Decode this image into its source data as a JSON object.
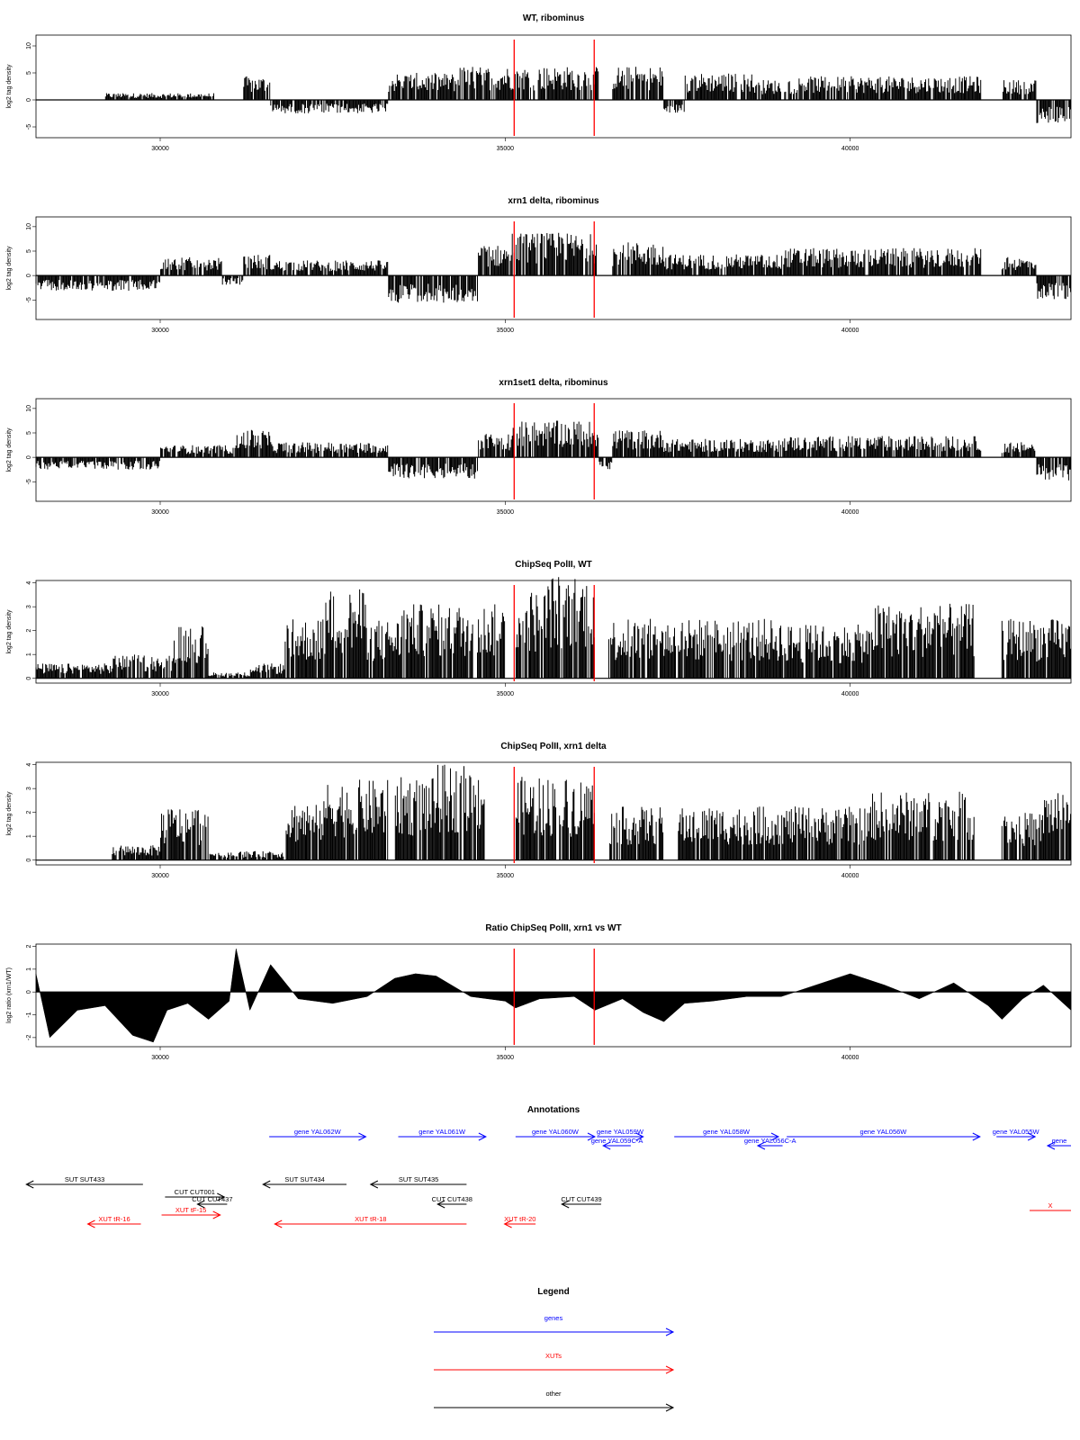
{
  "colors": {
    "gene": "#0000ff",
    "xut": "#ff0000",
    "other": "#000000",
    "marker": "#ff0000",
    "bars": "#000000"
  },
  "x_axis": {
    "min": 28200,
    "max": 43200,
    "ticks": [
      "30000",
      "35000",
      "40000"
    ]
  },
  "markers": [
    35130,
    36290
  ],
  "chart_data": [
    {
      "type": "bar",
      "title": "WT, ribominus",
      "ylabel": "log2 tag density",
      "ylim": [
        -7,
        12
      ],
      "yticks": [
        "10",
        "5",
        "0",
        "-5"
      ],
      "x_range": [
        28200,
        43200
      ],
      "signal_segments": [
        {
          "x0": 28200,
          "x1": 29200,
          "value": 0
        },
        {
          "x0": 29200,
          "x1": 30800,
          "value": 1.0
        },
        {
          "x0": 30800,
          "x1": 31200,
          "value": 0
        },
        {
          "x0": 31200,
          "x1": 31600,
          "value": 3.5
        },
        {
          "x0": 31600,
          "x1": 33300,
          "value": -2.0
        },
        {
          "x0": 33300,
          "x1": 34300,
          "value": 4.0
        },
        {
          "x0": 34300,
          "x1": 35100,
          "value": 5.0
        },
        {
          "x0": 35100,
          "x1": 36350,
          "value": 5.0
        },
        {
          "x0": 36350,
          "x1": 36550,
          "value": 0
        },
        {
          "x0": 36550,
          "x1": 37300,
          "value": 5.0
        },
        {
          "x0": 37300,
          "x1": 37600,
          "value": -2.0
        },
        {
          "x0": 37600,
          "x1": 38600,
          "value": 4.0
        },
        {
          "x0": 38600,
          "x1": 39200,
          "value": 3.0
        },
        {
          "x0": 39200,
          "x1": 41900,
          "value": 3.5
        },
        {
          "x0": 41900,
          "x1": 42200,
          "value": 0
        },
        {
          "x0": 42200,
          "x1": 42700,
          "value": 3.0
        },
        {
          "x0": 42700,
          "x1": 43200,
          "value": -3.5
        }
      ]
    },
    {
      "type": "bar",
      "title": "xrn1 delta, ribominus",
      "ylabel": "log2 tag density",
      "ylim": [
        -9,
        12
      ],
      "yticks": [
        "10",
        "5",
        "0",
        "-5"
      ],
      "x_range": [
        28200,
        43200
      ],
      "signal_segments": [
        {
          "x0": 28200,
          "x1": 30000,
          "value": -2.5
        },
        {
          "x0": 30000,
          "x1": 30900,
          "value": 3.0
        },
        {
          "x0": 30900,
          "x1": 31200,
          "value": -1.5
        },
        {
          "x0": 31200,
          "x1": 31600,
          "value": 3.5
        },
        {
          "x0": 31600,
          "x1": 33300,
          "value": 2.5
        },
        {
          "x0": 33300,
          "x1": 34600,
          "value": -4.5
        },
        {
          "x0": 34600,
          "x1": 35100,
          "value": 5.0
        },
        {
          "x0": 35100,
          "x1": 36350,
          "value": 7.0
        },
        {
          "x0": 36350,
          "x1": 36550,
          "value": 0
        },
        {
          "x0": 36550,
          "x1": 37300,
          "value": 5.5
        },
        {
          "x0": 37300,
          "x1": 39000,
          "value": 3.5
        },
        {
          "x0": 39000,
          "x1": 41900,
          "value": 4.5
        },
        {
          "x0": 41900,
          "x1": 42200,
          "value": 0
        },
        {
          "x0": 42200,
          "x1": 42700,
          "value": 3.0
        },
        {
          "x0": 42700,
          "x1": 43200,
          "value": -4.0
        }
      ]
    },
    {
      "type": "bar",
      "title": "xrn1set1 delta, ribominus",
      "ylabel": "log2 tag density",
      "ylim": [
        -9,
        12
      ],
      "yticks": [
        "10",
        "5",
        "0",
        "-5"
      ],
      "x_range": [
        28200,
        43200
      ],
      "signal_segments": [
        {
          "x0": 28200,
          "x1": 30000,
          "value": -2.0
        },
        {
          "x0": 30000,
          "x1": 31100,
          "value": 2.0
        },
        {
          "x0": 31100,
          "x1": 31600,
          "value": 4.5
        },
        {
          "x0": 31600,
          "x1": 33300,
          "value": 2.5
        },
        {
          "x0": 33300,
          "x1": 34600,
          "value": -3.5
        },
        {
          "x0": 34600,
          "x1": 35100,
          "value": 4.0
        },
        {
          "x0": 35100,
          "x1": 36350,
          "value": 6.0
        },
        {
          "x0": 36350,
          "x1": 36550,
          "value": -2.0
        },
        {
          "x0": 36550,
          "x1": 37300,
          "value": 4.5
        },
        {
          "x0": 37300,
          "x1": 39000,
          "value": 3.0
        },
        {
          "x0": 39000,
          "x1": 41900,
          "value": 3.5
        },
        {
          "x0": 41900,
          "x1": 42200,
          "value": 0
        },
        {
          "x0": 42200,
          "x1": 42700,
          "value": 2.5
        },
        {
          "x0": 42700,
          "x1": 43200,
          "value": -4.0
        }
      ]
    },
    {
      "type": "bar",
      "title": "ChipSeq PolII, WT",
      "ylabel": "log2 tag density",
      "ylim": [
        -0.2,
        4.1
      ],
      "yticks": [
        "4",
        "3",
        "2",
        "1",
        "0"
      ],
      "x_range": [
        28200,
        43200
      ],
      "signal_segments": [
        {
          "x0": 28200,
          "x1": 29300,
          "value": 0.5
        },
        {
          "x0": 29300,
          "x1": 30200,
          "value": 0.8
        },
        {
          "x0": 30200,
          "x1": 30700,
          "value": 1.8
        },
        {
          "x0": 30700,
          "x1": 31300,
          "value": 0.2
        },
        {
          "x0": 31300,
          "x1": 31800,
          "value": 0.5
        },
        {
          "x0": 31800,
          "x1": 32400,
          "value": 2.0
        },
        {
          "x0": 32400,
          "x1": 33000,
          "value": 3.0
        },
        {
          "x0": 33000,
          "x1": 33500,
          "value": 2.0
        },
        {
          "x0": 33500,
          "x1": 35000,
          "value": 2.5
        },
        {
          "x0": 35150,
          "x1": 35600,
          "value": 3.0
        },
        {
          "x0": 35600,
          "x1": 36300,
          "value": 3.5
        },
        {
          "x0": 36500,
          "x1": 37300,
          "value": 2.0
        },
        {
          "x0": 37300,
          "x1": 39000,
          "value": 2.0
        },
        {
          "x0": 39000,
          "x1": 40300,
          "value": 1.8
        },
        {
          "x0": 40300,
          "x1": 41800,
          "value": 2.5
        },
        {
          "x0": 42200,
          "x1": 43200,
          "value": 2.0
        }
      ]
    },
    {
      "type": "bar",
      "title": "ChipSeq PolII, xrn1 delta",
      "ylabel": "log2 tag density",
      "ylim": [
        -0.2,
        4.1
      ],
      "yticks": [
        "4",
        "3",
        "2",
        "1",
        "0"
      ],
      "x_range": [
        28200,
        43200
      ],
      "signal_segments": [
        {
          "x0": 28200,
          "x1": 29300,
          "value": 0
        },
        {
          "x0": 29300,
          "x1": 30000,
          "value": 0.5
        },
        {
          "x0": 30000,
          "x1": 30700,
          "value": 1.8
        },
        {
          "x0": 30700,
          "x1": 31800,
          "value": 0.3
        },
        {
          "x0": 31800,
          "x1": 32400,
          "value": 2.0
        },
        {
          "x0": 32400,
          "x1": 33300,
          "value": 2.7
        },
        {
          "x0": 33400,
          "x1": 34000,
          "value": 2.8
        },
        {
          "x0": 34000,
          "x1": 34700,
          "value": 3.2
        },
        {
          "x0": 35150,
          "x1": 36300,
          "value": 2.8
        },
        {
          "x0": 36500,
          "x1": 37300,
          "value": 1.8
        },
        {
          "x0": 37500,
          "x1": 39000,
          "value": 1.8
        },
        {
          "x0": 39000,
          "x1": 40300,
          "value": 1.8
        },
        {
          "x0": 40300,
          "x1": 41800,
          "value": 2.3
        },
        {
          "x0": 42200,
          "x1": 42800,
          "value": 1.6
        },
        {
          "x0": 42800,
          "x1": 43200,
          "value": 2.4
        }
      ]
    },
    {
      "type": "area",
      "title": "Ratio ChipSeq PolII, xrn1 vs WT",
      "ylabel": "log2 ratio (xrn1/WT)",
      "ylim": [
        -2.4,
        2.1
      ],
      "yticks": [
        "2",
        "1",
        "0",
        "-1",
        "-2"
      ],
      "x_range": [
        28200,
        43200
      ],
      "x": [
        28200,
        28400,
        28800,
        29200,
        29600,
        29900,
        30100,
        30400,
        30700,
        31000,
        31100,
        31300,
        31600,
        32000,
        32500,
        33000,
        33400,
        33700,
        34000,
        34500,
        35000,
        35150,
        35500,
        36000,
        36300,
        36700,
        37000,
        37300,
        37600,
        38000,
        38500,
        39000,
        39500,
        40000,
        40500,
        41000,
        41500,
        42000,
        42200,
        42500,
        42800,
        43200
      ],
      "y": [
        0.8,
        -2.0,
        -0.8,
        -0.6,
        -1.9,
        -2.2,
        -0.8,
        -0.5,
        -1.2,
        -0.4,
        1.9,
        -0.8,
        1.2,
        -0.3,
        -0.5,
        -0.2,
        0.6,
        0.8,
        0.7,
        -0.2,
        -0.4,
        -0.7,
        -0.3,
        -0.2,
        -0.8,
        -0.3,
        -0.9,
        -1.3,
        -0.5,
        -0.4,
        -0.2,
        -0.2,
        0.3,
        0.8,
        0.3,
        -0.3,
        0.4,
        -0.6,
        -1.2,
        -0.3,
        0.3,
        -0.8
      ]
    }
  ],
  "annotations": {
    "title": "Annotations",
    "items": [
      {
        "label": "gene YAL062W",
        "kind": "gene",
        "x0": 31580,
        "x1": 32980,
        "dir": "right",
        "row": 0
      },
      {
        "label": "gene YAL061W",
        "kind": "gene",
        "x0": 33450,
        "x1": 34720,
        "dir": "right",
        "row": 0
      },
      {
        "label": "gene YAL060W",
        "kind": "gene",
        "x0": 35150,
        "x1": 36300,
        "dir": "right",
        "row": 0
      },
      {
        "label": "gene YAL059W",
        "kind": "gene",
        "x0": 36330,
        "x1": 37000,
        "dir": "right",
        "row": 0
      },
      {
        "label": "gene YAL059C-A",
        "kind": "gene",
        "x0": 36420,
        "x1": 36820,
        "dir": "left",
        "row": 1
      },
      {
        "label": "gene YAL058W",
        "kind": "gene",
        "x0": 37450,
        "x1": 38960,
        "dir": "right",
        "row": 0
      },
      {
        "label": "gene YAL056C-A",
        "kind": "gene",
        "x0": 38660,
        "x1": 39020,
        "dir": "left",
        "row": 1
      },
      {
        "label": "gene YAL056W",
        "kind": "gene",
        "x0": 39080,
        "x1": 41880,
        "dir": "right",
        "row": 0
      },
      {
        "label": "gene YAL055W",
        "kind": "gene",
        "x0": 42120,
        "x1": 42680,
        "dir": "right",
        "row": 0
      },
      {
        "label": "gene",
        "kind": "gene",
        "x0": 42860,
        "x1": 43200,
        "dir": "left",
        "row": 1
      },
      {
        "label": "SUT SUT433",
        "kind": "other",
        "x0": 28060,
        "x1": 29750,
        "dir": "left",
        "row": 2
      },
      {
        "label": "CUT CUT001",
        "kind": "other",
        "x0": 30070,
        "x1": 30930,
        "dir": "right",
        "row": 3
      },
      {
        "label": "CUT CUT437",
        "kind": "other",
        "x0": 30540,
        "x1": 30970,
        "dir": "left",
        "row": 4
      },
      {
        "label": "SUT SUT434",
        "kind": "other",
        "x0": 31490,
        "x1": 32700,
        "dir": "left",
        "row": 2
      },
      {
        "label": "SUT SUT435",
        "kind": "other",
        "x0": 33050,
        "x1": 34440,
        "dir": "left",
        "row": 2
      },
      {
        "label": "CUT CUT438",
        "kind": "other",
        "x0": 34020,
        "x1": 34440,
        "dir": "left",
        "row": 5
      },
      {
        "label": "CUT CUT439",
        "kind": "other",
        "x0": 35820,
        "x1": 36390,
        "dir": "left",
        "row": 5
      },
      {
        "label": "XUT tR-16",
        "kind": "xut",
        "x0": 28950,
        "x1": 29720,
        "dir": "left",
        "row": 6
      },
      {
        "label": "XUT tF-15",
        "kind": "xut",
        "x0": 30020,
        "x1": 30870,
        "dir": "right",
        "row": 7
      },
      {
        "label": "XUT tR-18",
        "kind": "xut",
        "x0": 31660,
        "x1": 34440,
        "dir": "left",
        "row": 6
      },
      {
        "label": "XUT tR-20",
        "kind": "xut",
        "x0": 34990,
        "x1": 35440,
        "dir": "left",
        "row": 6
      },
      {
        "label": "X",
        "kind": "xut",
        "x0": 42600,
        "x1": 43200,
        "dir": "none",
        "row": 8
      }
    ]
  },
  "legend": {
    "title": "Legend",
    "items": [
      {
        "label": "genes",
        "kind": "gene"
      },
      {
        "label": "XUTs",
        "kind": "xut"
      },
      {
        "label": "other",
        "kind": "other"
      }
    ]
  }
}
